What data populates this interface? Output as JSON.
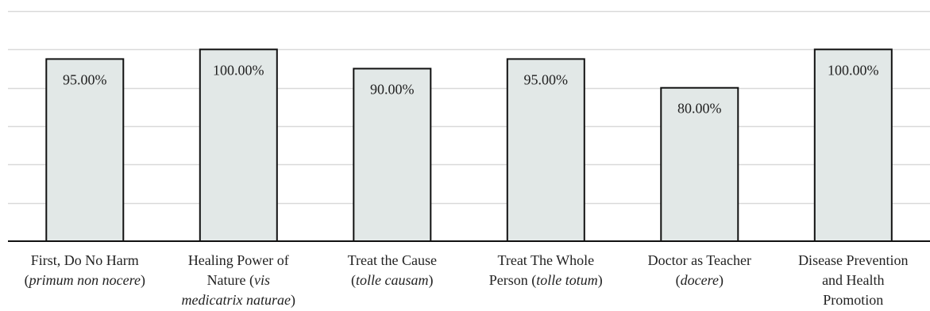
{
  "chart_data": {
    "type": "bar",
    "title": "",
    "xlabel": "",
    "ylabel": "",
    "ylim": [
      0,
      120
    ],
    "grid": true,
    "bar_color": "#e2e8e7",
    "bar_stroke": "#111111",
    "grid_color": "#d9d9d9",
    "categories": [
      {
        "main": "First, Do No Harm",
        "line2_pre": "(",
        "line2_it": "primum non nocere",
        "line2_post": ")",
        "line3": ""
      },
      {
        "main": "Healing Power of",
        "line2_pre": "Nature (",
        "line2_it": "vis",
        "line2_post": "",
        "line3": "medicatrix naturae",
        "line3_post": ")"
      },
      {
        "main": "Treat the Cause",
        "line2_pre": "(",
        "line2_it": "tolle causam",
        "line2_post": ")",
        "line3": ""
      },
      {
        "main": "Treat The Whole",
        "line2_pre": "Person (",
        "line2_it": "tolle totum",
        "line2_post": ")",
        "line3": ""
      },
      {
        "main": "Doctor as Teacher",
        "line2_pre": "(",
        "line2_it": "docere",
        "line2_post": ")",
        "line3": ""
      },
      {
        "main": "Disease Prevention",
        "line2_pre": "and Health",
        "line2_it": "",
        "line2_post": "",
        "line3": "Promotion"
      }
    ],
    "values": [
      95,
      100,
      90,
      95,
      80,
      100
    ],
    "data_labels": [
      "95.00%",
      "100.00%",
      "90.00%",
      "95.00%",
      "80.00%",
      "100.00%"
    ]
  }
}
